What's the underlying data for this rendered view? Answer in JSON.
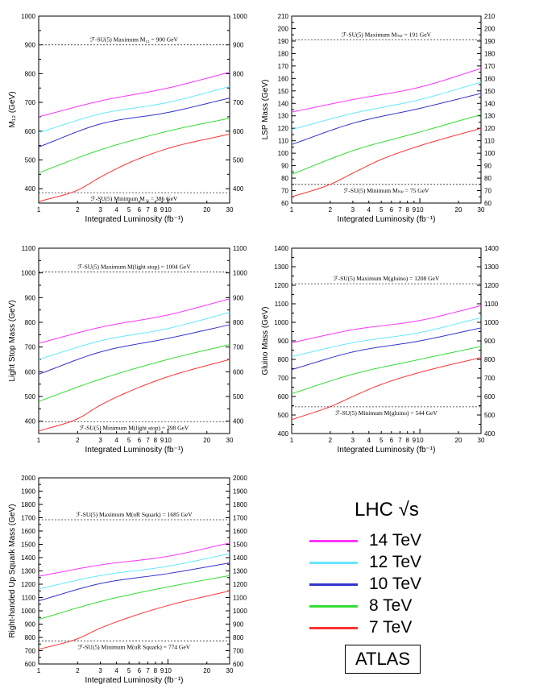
{
  "chart_data": [
    {
      "type": "line",
      "id": "m12",
      "xlabel": "Integrated Luminosity (fb⁻¹)",
      "ylabel": "M₁₂ (GeV)",
      "xscale": "log",
      "xlim": [
        1,
        30
      ],
      "ylim": [
        350,
        1000
      ],
      "xticks": [
        1,
        2,
        3,
        4,
        5,
        6,
        7,
        8,
        9,
        10,
        20,
        30
      ],
      "xticklabels": [
        "1",
        "2",
        "3",
        "4",
        "5",
        "6",
        "7",
        "8",
        "9",
        "10",
        "20",
        "30"
      ],
      "yticks": [
        400,
        500,
        600,
        700,
        800,
        900,
        1000
      ],
      "annotations": [
        {
          "text": "ℱ-SU(5) Maximum M₁₂ = 900 GeV",
          "y": 900
        },
        {
          "text": "ℱ-SU(5) Minimum M₁₂ = 386 GeV",
          "y": 386
        }
      ],
      "series": [
        {
          "name": "14 TeV",
          "x": [
            1,
            3,
            10,
            30
          ],
          "values": [
            650,
            705,
            750,
            805
          ]
        },
        {
          "name": "12 TeV",
          "x": [
            1,
            3,
            10,
            30
          ],
          "values": [
            595,
            660,
            700,
            755
          ]
        },
        {
          "name": "10 TeV",
          "x": [
            1,
            3,
            10,
            30
          ],
          "values": [
            545,
            625,
            665,
            715
          ]
        },
        {
          "name": "8 TeV",
          "x": [
            1,
            3,
            10,
            30
          ],
          "values": [
            455,
            535,
            600,
            645
          ]
        },
        {
          "name": "7 TeV",
          "x": [
            1,
            2,
            3,
            5,
            10,
            30
          ],
          "values": [
            355,
            395,
            440,
            490,
            540,
            590
          ]
        }
      ]
    },
    {
      "type": "line",
      "id": "lsp",
      "xlabel": "Integrated Luminosity (fb⁻¹)",
      "ylabel": "LSP Mass (GeV)",
      "xscale": "log",
      "xlim": [
        1,
        30
      ],
      "ylim": [
        60,
        210
      ],
      "xticks": [
        1,
        2,
        3,
        4,
        5,
        6,
        7,
        8,
        9,
        10,
        20,
        30
      ],
      "xticklabels": [
        "1",
        "2",
        "3",
        "4",
        "5",
        "6",
        "7",
        "8",
        "9",
        "10",
        "20",
        "30"
      ],
      "yticks": [
        60,
        70,
        80,
        90,
        100,
        110,
        120,
        130,
        140,
        150,
        160,
        170,
        180,
        190,
        200,
        210
      ],
      "annotations": [
        {
          "text": "ℱ-SU(5) Maximum Mₗₛₚ = 191 GeV",
          "y": 191
        },
        {
          "text": "ℱ-SU(5) Minimum Mₗₛₚ = 75 GeV",
          "y": 75
        }
      ],
      "series": [
        {
          "name": "14 TeV",
          "x": [
            1,
            3,
            10,
            30
          ],
          "values": [
            133,
            143,
            153,
            168
          ]
        },
        {
          "name": "12 TeV",
          "x": [
            1,
            3,
            10,
            30
          ],
          "values": [
            119,
            132,
            143,
            157
          ]
        },
        {
          "name": "10 TeV",
          "x": [
            1,
            3,
            10,
            30
          ],
          "values": [
            107,
            124,
            136,
            148
          ]
        },
        {
          "name": "8 TeV",
          "x": [
            1,
            3,
            10,
            30
          ],
          "values": [
            83,
            102,
            117,
            131
          ]
        },
        {
          "name": "7 TeV",
          "x": [
            1,
            2,
            3,
            5,
            10,
            30
          ],
          "values": [
            65,
            75,
            84,
            95,
            106,
            120
          ]
        }
      ]
    },
    {
      "type": "line",
      "id": "stop",
      "xlabel": "Integrated Luminosity (fb⁻¹)",
      "ylabel": "Light Stop Mass (GeV)",
      "xscale": "log",
      "xlim": [
        1,
        30
      ],
      "ylim": [
        350,
        1100
      ],
      "xticks": [
        1,
        2,
        3,
        4,
        5,
        6,
        7,
        8,
        9,
        10,
        20,
        30
      ],
      "xticklabels": [
        "1",
        "2",
        "3",
        "4",
        "5",
        "6",
        "7",
        "8",
        "9",
        "10",
        "20",
        "30"
      ],
      "yticks": [
        400,
        500,
        600,
        700,
        800,
        900,
        1000,
        1100
      ],
      "annotations": [
        {
          "text": "ℱ-SU(5) Maximum M(light stop) = 1004 GeV",
          "y": 1004
        },
        {
          "text": "ℱ-SU(5) Minimum M(light stop) = 398 GeV",
          "y": 398
        }
      ],
      "series": [
        {
          "name": "14 TeV",
          "x": [
            1,
            3,
            10,
            30
          ],
          "values": [
            715,
            780,
            830,
            895
          ]
        },
        {
          "name": "12 TeV",
          "x": [
            1,
            3,
            10,
            30
          ],
          "values": [
            650,
            725,
            775,
            840
          ]
        },
        {
          "name": "10 TeV",
          "x": [
            1,
            3,
            10,
            30
          ],
          "values": [
            590,
            680,
            735,
            790
          ]
        },
        {
          "name": "8 TeV",
          "x": [
            1,
            3,
            10,
            30
          ],
          "values": [
            480,
            570,
            650,
            710
          ]
        },
        {
          "name": "7 TeV",
          "x": [
            1,
            2,
            3,
            5,
            10,
            30
          ],
          "values": [
            360,
            410,
            465,
            520,
            580,
            650
          ]
        }
      ]
    },
    {
      "type": "line",
      "id": "gluino",
      "xlabel": "Integrated Luminosity (fb⁻¹)",
      "ylabel": "Gluino Mass (GeV)",
      "xscale": "log",
      "xlim": [
        1,
        30
      ],
      "ylim": [
        400,
        1400
      ],
      "xticks": [
        1,
        2,
        3,
        4,
        5,
        6,
        7,
        8,
        9,
        10,
        20,
        30
      ],
      "xticklabels": [
        "1",
        "2",
        "3",
        "4",
        "5",
        "6",
        "7",
        "8",
        "9",
        "10",
        "20",
        "30"
      ],
      "yticks": [
        400,
        500,
        600,
        700,
        800,
        900,
        1000,
        1100,
        1200,
        1300,
        1400
      ],
      "annotations": [
        {
          "text": "ℱ-SU(5) Maximum M(gluino) = 1208 GeV",
          "y": 1208
        },
        {
          "text": "ℱ-SU(5) Minimum M(gluino) = 544 GeV",
          "y": 544
        }
      ],
      "series": [
        {
          "name": "14 TeV",
          "x": [
            1,
            3,
            10,
            30
          ],
          "values": [
            890,
            960,
            1010,
            1090
          ]
        },
        {
          "name": "12 TeV",
          "x": [
            1,
            3,
            10,
            30
          ],
          "values": [
            815,
            890,
            945,
            1025
          ]
        },
        {
          "name": "10 TeV",
          "x": [
            1,
            3,
            10,
            30
          ],
          "values": [
            745,
            840,
            900,
            970
          ]
        },
        {
          "name": "8 TeV",
          "x": [
            1,
            3,
            10,
            30
          ],
          "values": [
            615,
            720,
            800,
            870
          ]
        },
        {
          "name": "7 TeV",
          "x": [
            1,
            2,
            3,
            5,
            10,
            30
          ],
          "values": [
            475,
            545,
            600,
            665,
            730,
            810
          ]
        }
      ]
    },
    {
      "type": "line",
      "id": "squark",
      "xlabel": "Integrated Luminosity (fb⁻¹)",
      "ylabel": "Right-handed Up Squark Mass (GeV)",
      "xscale": "log",
      "xlim": [
        1,
        30
      ],
      "ylim": [
        600,
        2000
      ],
      "xticks": [
        1,
        2,
        3,
        4,
        5,
        6,
        7,
        8,
        9,
        10,
        20,
        30
      ],
      "xticklabels": [
        "1",
        "2",
        "3",
        "4",
        "5",
        "6",
        "7",
        "8",
        "9",
        "10",
        "20",
        "30"
      ],
      "yticks": [
        600,
        700,
        800,
        900,
        1000,
        1100,
        1200,
        1300,
        1400,
        1500,
        1600,
        1700,
        1800,
        1900,
        2000
      ],
      "annotations": [
        {
          "text": "ℱ-SU(5) Maximum M(uR Squark) = 1685 GeV",
          "y": 1685
        },
        {
          "text": "ℱ-SU(5) Minimum M(uR Squark) = 774 GeV",
          "y": 774
        }
      ],
      "series": [
        {
          "name": "14 TeV",
          "x": [
            1,
            3,
            10,
            30
          ],
          "values": [
            1260,
            1345,
            1410,
            1510
          ]
        },
        {
          "name": "12 TeV",
          "x": [
            1,
            3,
            10,
            30
          ],
          "values": [
            1165,
            1265,
            1335,
            1430
          ]
        },
        {
          "name": "10 TeV",
          "x": [
            1,
            3,
            10,
            30
          ],
          "values": [
            1075,
            1205,
            1280,
            1360
          ]
        },
        {
          "name": "8 TeV",
          "x": [
            1,
            3,
            10,
            30
          ],
          "values": [
            935,
            1070,
            1180,
            1265
          ]
        },
        {
          "name": "7 TeV",
          "x": [
            1,
            2,
            3,
            5,
            10,
            30
          ],
          "values": [
            710,
            790,
            870,
            950,
            1040,
            1150
          ]
        }
      ]
    }
  ],
  "legend": {
    "title": "LHC √s",
    "entries": [
      {
        "label": "14 TeV",
        "color": "#ff33ff"
      },
      {
        "label": "12 TeV",
        "color": "#66e8ff"
      },
      {
        "label": "10 TeV",
        "color": "#3333cc"
      },
      {
        "label": "8 TeV",
        "color": "#33dd33"
      },
      {
        "label": "7 TeV",
        "color": "#ff3333"
      }
    ]
  },
  "badge": "ATLAS"
}
